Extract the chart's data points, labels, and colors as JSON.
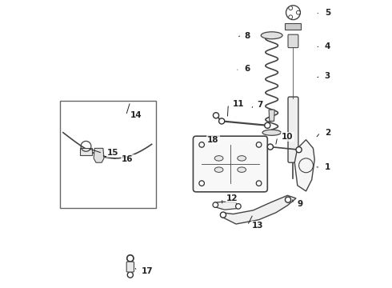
{
  "bg_color": "#ffffff",
  "fig_width": 4.9,
  "fig_height": 3.6,
  "dpi": 100,
  "label_fontsize": 7.5,
  "label_color": "#222222",
  "line_color": "#444444"
}
